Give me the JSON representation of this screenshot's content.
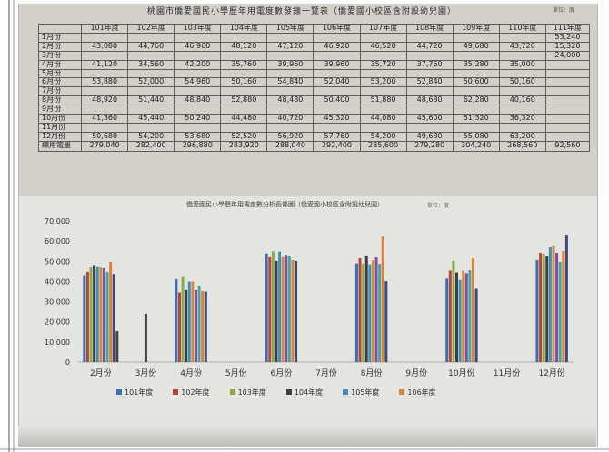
{
  "table": {
    "title": "桃園市僑愛國民小學歷年用電度數發錄一覽表（僑愛國小校區含附設幼兒園）",
    "unit": "單位：度",
    "headers": [
      "",
      "101年度",
      "102年度",
      "103年度",
      "104年度",
      "105年度",
      "106年度",
      "107年度",
      "108年度",
      "109年度",
      "110年度",
      "111年度"
    ],
    "rows": [
      [
        "1月份",
        "",
        "",
        "",
        "",
        "",
        "",
        "",
        "",
        "",
        "",
        "53,240"
      ],
      [
        "2月份",
        "43,080",
        "44,760",
        "46,960",
        "48,120",
        "47,120",
        "46,920",
        "46,520",
        "44,720",
        "49,680",
        "43,720",
        "15,320"
      ],
      [
        "3月份",
        "",
        "",
        "",
        "",
        "",
        "",
        "",
        "",
        "",
        "",
        "24,000"
      ],
      [
        "4月份",
        "41,120",
        "34,560",
        "42,200",
        "35,760",
        "39,960",
        "39,960",
        "35,720",
        "37,760",
        "35,280",
        "35,000",
        ""
      ],
      [
        "5月份",
        "",
        "",
        "",
        "",
        "",
        "",
        "",
        "",
        "",
        "",
        ""
      ],
      [
        "6月份",
        "53,880",
        "52,000",
        "54,960",
        "50,160",
        "54,840",
        "52,040",
        "53,200",
        "52,840",
        "50,600",
        "50,160",
        ""
      ],
      [
        "7月份",
        "",
        "",
        "",
        "",
        "",
        "",
        "",
        "",
        "",
        "",
        ""
      ],
      [
        "8月份",
        "48,920",
        "51,440",
        "48,840",
        "52,880",
        "48,480",
        "50,400",
        "51,880",
        "48,680",
        "62,280",
        "40,160",
        ""
      ],
      [
        "9月份",
        "",
        "",
        "",
        "",
        "",
        "",
        "",
        "",
        "",
        "",
        ""
      ],
      [
        "10月份",
        "41,360",
        "45,440",
        "50,240",
        "44,480",
        "40,720",
        "45,320",
        "44,080",
        "45,600",
        "51,320",
        "36,320",
        ""
      ],
      [
        "11月份",
        "",
        "",
        "",
        "",
        "",
        "",
        "",
        "",
        "",
        "",
        ""
      ],
      [
        "12月份",
        "50,680",
        "54,200",
        "53,680",
        "52,520",
        "56,920",
        "57,760",
        "54,200",
        "49,680",
        "55,080",
        "63,200",
        ""
      ],
      [
        "總用電量",
        "279,040",
        "282,400",
        "296,880",
        "283,920",
        "288,040",
        "292,400",
        "285,600",
        "279,280",
        "304,240",
        "268,560",
        "92,560"
      ]
    ]
  },
  "chart_data": {
    "type": "bar",
    "title": "僑愛國民小學歷年用電度數分析長條圖（僑愛國小校區含附設幼兒園）",
    "unit": "單位：度",
    "categories": [
      "2月份",
      "3月份",
      "4月份",
      "5月份",
      "6月份",
      "7月份",
      "8月份",
      "9月份",
      "10月份",
      "11月份",
      "12月份"
    ],
    "ylim": [
      0,
      70000
    ],
    "yticks": [
      "0",
      "10,000",
      "20,000",
      "30,000",
      "40,000",
      "50,000",
      "60,000",
      "70,000"
    ],
    "series": [
      {
        "name": "101年度",
        "color": "#3e6db3",
        "values": [
          43080,
          null,
          41120,
          null,
          53880,
          null,
          48920,
          null,
          41360,
          null,
          50680
        ]
      },
      {
        "name": "102年度",
        "color": "#b3473d",
        "values": [
          44760,
          null,
          34560,
          null,
          52000,
          null,
          51440,
          null,
          45440,
          null,
          54200
        ]
      },
      {
        "name": "103年度",
        "color": "#8caa45",
        "values": [
          46960,
          null,
          42200,
          null,
          54960,
          null,
          48840,
          null,
          50240,
          null,
          53680
        ]
      },
      {
        "name": "104年度",
        "color": "#3c3c4a",
        "values": [
          48120,
          null,
          35760,
          null,
          50160,
          null,
          52880,
          null,
          44480,
          null,
          52520
        ]
      },
      {
        "name": "105年度",
        "color": "#3f8fb8",
        "values": [
          47120,
          null,
          39960,
          null,
          54840,
          null,
          48480,
          null,
          40720,
          null,
          56920
        ]
      },
      {
        "name": "106年度",
        "color": "#d48a3a",
        "values": [
          46920,
          null,
          39960,
          null,
          52040,
          null,
          50400,
          null,
          45320,
          null,
          57760
        ]
      },
      {
        "name": "",
        "color": "#7d4fa0",
        "values": [
          46520,
          null,
          35720,
          null,
          53200,
          null,
          51880,
          null,
          44080,
          null,
          54200
        ]
      },
      {
        "name": "",
        "color": "#43a6a0",
        "values": [
          44720,
          null,
          37760,
          null,
          52840,
          null,
          48680,
          null,
          45600,
          null,
          49680
        ]
      },
      {
        "name": "",
        "color": "#e07f3a",
        "values": [
          49680,
          null,
          35280,
          null,
          50600,
          null,
          62280,
          null,
          51320,
          null,
          55080
        ]
      },
      {
        "name": "",
        "color": "#3a4a7c",
        "values": [
          43720,
          null,
          35000,
          null,
          50160,
          null,
          40160,
          null,
          36320,
          null,
          63200
        ]
      },
      {
        "name": "",
        "color": "#3e4a3e",
        "values": [
          15320,
          24000,
          null,
          null,
          null,
          null,
          null,
          null,
          null,
          null,
          null
        ]
      }
    ],
    "legend_position": "bottom",
    "grid": false
  }
}
